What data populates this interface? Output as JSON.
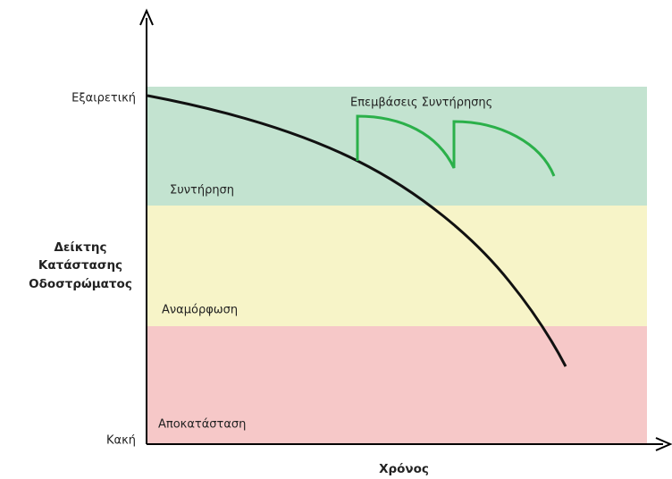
{
  "axes": {
    "y_top_label": "Εξαιρετική",
    "y_bottom_label": "Κακή",
    "y_title_lines": [
      "Δείκτης",
      "Κατάστασης",
      "Οδοστρώματος"
    ],
    "x_title": "Χρόνος"
  },
  "zones": [
    {
      "label": "Συντήρηση"
    },
    {
      "label": "Αναμόρφωση"
    },
    {
      "label": "Αποκατάσταση"
    }
  ],
  "annotation": "Επεμβάσεις Συντήρησης"
}
